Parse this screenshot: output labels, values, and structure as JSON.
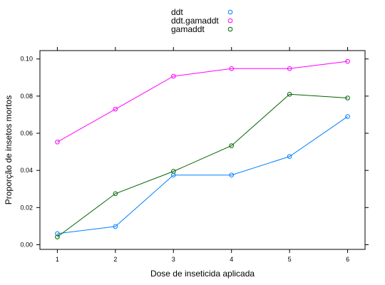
{
  "chart_data": {
    "type": "line",
    "xlabel": "Dose de inseticida aplicada",
    "ylabel": "Proporção de insetos mortos",
    "x": [
      1,
      2,
      3,
      4,
      5,
      6
    ],
    "xticks": [
      "1",
      "2",
      "3",
      "4",
      "5",
      "6"
    ],
    "yticks": [
      "0.00",
      "0.02",
      "0.04",
      "0.06",
      "0.08",
      "0.10"
    ],
    "xlim": [
      0.7,
      6.3
    ],
    "ylim": [
      -0.0025,
      0.1045
    ],
    "grid": false,
    "legend_position": "top",
    "series": [
      {
        "name": "ddt",
        "color": "#0080ff",
        "values": [
          0.006,
          0.0098,
          0.0375,
          0.0375,
          0.0475,
          0.069
        ]
      },
      {
        "name": "ddt.gamaddt",
        "color": "#ff00ff",
        "values": [
          0.0553,
          0.073,
          0.0907,
          0.0948,
          0.0948,
          0.0987
        ]
      },
      {
        "name": "gamaddt",
        "color": "#006400",
        "values": [
          0.0042,
          0.0275,
          0.0395,
          0.0533,
          0.081,
          0.079
        ]
      }
    ]
  }
}
